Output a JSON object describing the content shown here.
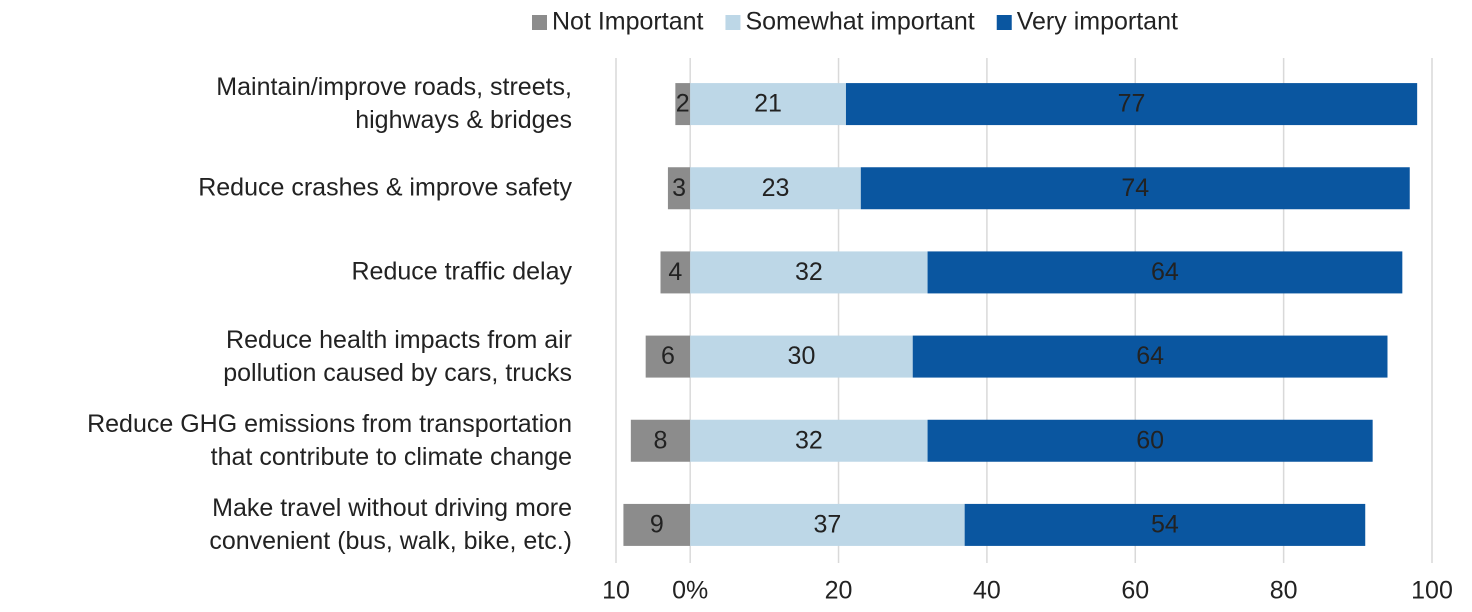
{
  "chart_data": {
    "type": "diverging_bar",
    "categories": [
      "Maintain/improve roads, streets,\nhighways & bridges",
      "Reduce crashes & improve safety",
      "Reduce traffic delay",
      "Reduce health impacts from air\npollution caused by cars, trucks",
      "Reduce GHG emissions from transportation\nthat contribute to climate change",
      "Make travel without driving more\nconvenient (bus, walk, bike, etc.)"
    ],
    "series": [
      {
        "name": "Not Important",
        "color": "#8c8c8c",
        "values": [
          2,
          3,
          4,
          6,
          8,
          9
        ]
      },
      {
        "name": "Somewhat important",
        "color": "#bdd7e7",
        "values": [
          21,
          23,
          32,
          30,
          32,
          37
        ]
      },
      {
        "name": "Very important",
        "color": "#0a56a0",
        "values": [
          77,
          74,
          64,
          64,
          60,
          54
        ]
      }
    ],
    "xlim": [
      -10,
      100
    ],
    "xticks": [
      {
        "value": -10,
        "label": "10"
      },
      {
        "value": 0,
        "label": "0%"
      },
      20,
      40,
      60,
      80,
      100
    ],
    "grid": true,
    "legend": "top"
  }
}
